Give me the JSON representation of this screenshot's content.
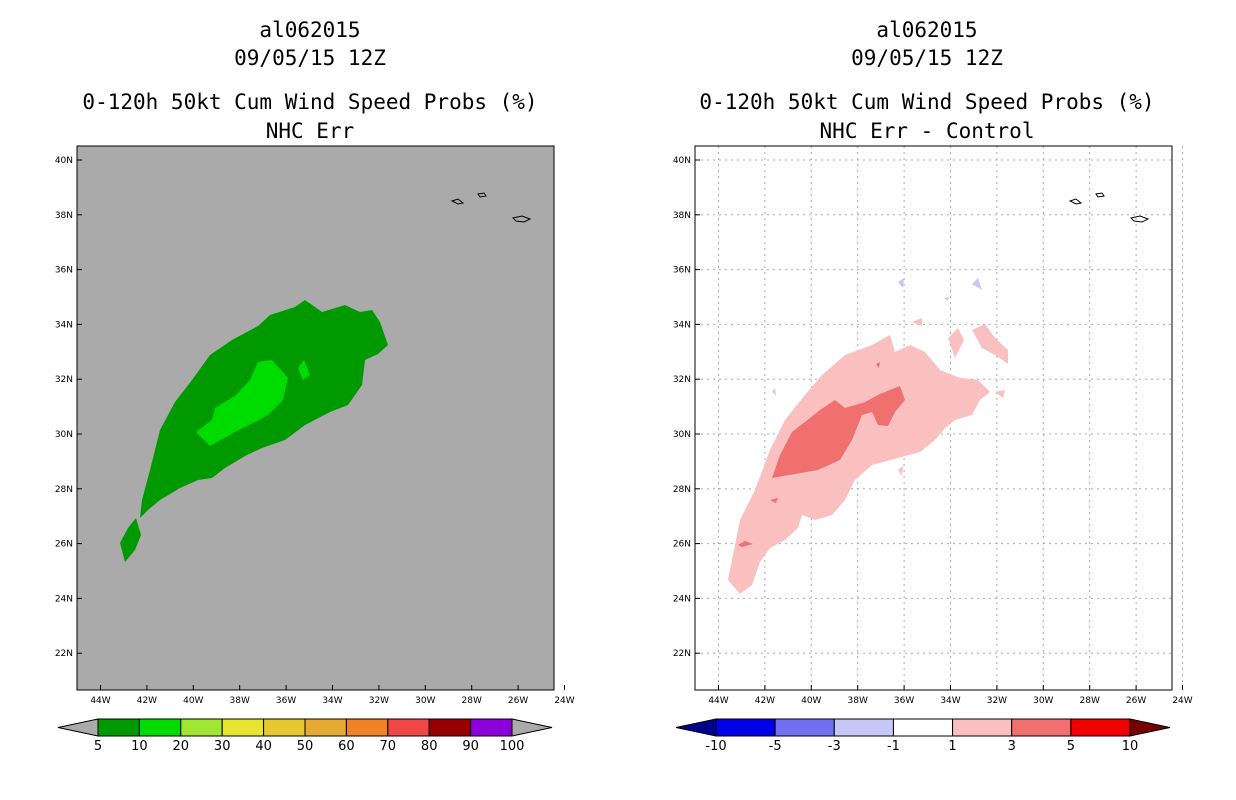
{
  "panels": [
    {
      "storm_id": "al062015",
      "datetime": "09/05/15 12Z",
      "product": "0-120h 50kt Cum Wind Speed Probs (%)",
      "subtitle": "NHC Err",
      "colorbar": {
        "labels": [
          "5",
          "10",
          "20",
          "30",
          "40",
          "50",
          "60",
          "70",
          "80",
          "90",
          "100"
        ],
        "colors": [
          "#009a00",
          "#00dc00",
          "#a0e632",
          "#e6e632",
          "#e6c832",
          "#e6a932",
          "#f08228",
          "#f04646",
          "#960000",
          "#8c00dc"
        ],
        "under_color": "#aaaaaa",
        "over_color": "#aaaaaa"
      },
      "background": "#aaaaaa"
    },
    {
      "storm_id": "al062015",
      "datetime": "09/05/15 12Z",
      "product": "0-120h 50kt Cum Wind Speed Probs (%)",
      "subtitle": "NHC Err - Control",
      "colorbar": {
        "labels": [
          "-10",
          "-5",
          "-3",
          "-1",
          "1",
          "3",
          "5",
          "10"
        ],
        "colors": [
          "#0000e6",
          "#7070f0",
          "#c8c8f8",
          "#ffffff",
          "#fac0c0",
          "#f07070",
          "#f00000"
        ],
        "under_color": "#00008c",
        "over_color": "#780000"
      },
      "background": "#ffffff"
    }
  ],
  "axes": {
    "x_ticks": [
      "44W",
      "42W",
      "40W",
      "38W",
      "36W",
      "34W",
      "32W",
      "30W",
      "28W",
      "26W",
      "24W"
    ],
    "y_ticks": [
      "22N",
      "24N",
      "26N",
      "28N",
      "30N",
      "32N",
      "34N",
      "36N",
      "38N",
      "40N"
    ]
  }
}
